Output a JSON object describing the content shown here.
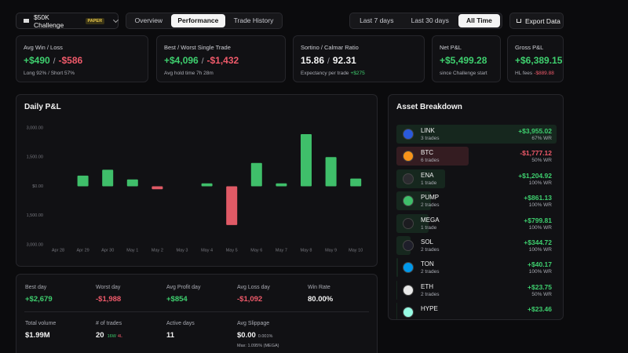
{
  "header": {
    "account": "$50K Challenge",
    "badge": "PAPER",
    "tabs": [
      "Overview",
      "Performance",
      "Trade History"
    ],
    "active_tab": 1,
    "ranges": [
      "Last 7 days",
      "Last 30 days",
      "All Time"
    ],
    "active_range": 2,
    "export": "Export Data"
  },
  "cards": [
    {
      "label": "Avg Win / Loss",
      "pos": "+$490",
      "sep": "/",
      "neg": "-$586",
      "note": "Long 92% / Short 57%"
    },
    {
      "label": "Best / Worst Single Trade",
      "pos": "+$4,096",
      "sep": "/",
      "neg": "-$1,432",
      "note": "Avg hold time 7h 28m"
    },
    {
      "label": "Sortino / Calmar Ratio",
      "main": "15.86",
      "sep": "/",
      "main2": "92.31",
      "note": "Expectancy per trade",
      "note_pos": "+$275"
    },
    {
      "label": "Net P&L",
      "pos": "+$5,499.28",
      "note": "since Challenge start"
    },
    {
      "label": "Gross P&L",
      "pos": "+$6,389.15",
      "note": "HL fees",
      "note_neg": "-$889.88"
    }
  ],
  "chart_data": {
    "type": "bar",
    "title": "Daily P&L",
    "categories": [
      "Apr 28",
      "Apr 29",
      "Apr 30",
      "May 1",
      "May 2",
      "May 3",
      "May 4",
      "May 5",
      "May 6",
      "May 7",
      "May 8",
      "May 9",
      "May 10"
    ],
    "values": [
      0,
      550,
      850,
      350,
      -150,
      0,
      150,
      -1988,
      1200,
      150,
      2679,
      1500,
      400
    ],
    "colors": {
      "positive": "#3fbf6a",
      "negative": "#e05a66"
    },
    "ylim": [
      -3000,
      3000
    ],
    "yticks": [
      {
        "value": -3000,
        "label": "3,000.00"
      },
      {
        "value": -1500,
        "label": "1,500.00"
      },
      {
        "value": 0,
        "label": "$0.00"
      },
      {
        "value": 1500,
        "label": "1,500.00"
      },
      {
        "value": 3000,
        "label": "3,000.00"
      }
    ],
    "grid": false
  },
  "assets": {
    "title": "Asset Breakdown",
    "rows": [
      {
        "symbol": "LINK",
        "trades": "3 trades",
        "pnl": 3955.02,
        "pnl_label": "+$3,955.02",
        "win_rate": "67% WR"
      },
      {
        "symbol": "BTC",
        "trades": "6 trades",
        "pnl": -1777.12,
        "pnl_label": "-$1,777.12",
        "win_rate": "50% WR"
      },
      {
        "symbol": "ENA",
        "trades": "1 trade",
        "pnl": 1204.92,
        "pnl_label": "+$1,204.92",
        "win_rate": "100% WR"
      },
      {
        "symbol": "PUMP",
        "trades": "2 trades",
        "pnl": 861.13,
        "pnl_label": "+$861.13",
        "win_rate": "100% WR"
      },
      {
        "symbol": "MEGA",
        "trades": "1 trade",
        "pnl": 799.81,
        "pnl_label": "+$799.81",
        "win_rate": "100% WR"
      },
      {
        "symbol": "SOL",
        "trades": "2 trades",
        "pnl": 344.72,
        "pnl_label": "+$344.72",
        "win_rate": "100% WR"
      },
      {
        "symbol": "TON",
        "trades": "2 trades",
        "pnl": 40.17,
        "pnl_label": "+$40.17",
        "win_rate": "100% WR"
      },
      {
        "symbol": "ETH",
        "trades": "2 trades",
        "pnl": 23.75,
        "pnl_label": "+$23.75",
        "win_rate": "50% WR"
      },
      {
        "symbol": "HYPE",
        "pnl": 23.46,
        "pnl_label": "+$23.46"
      }
    ]
  },
  "summary": {
    "rows": [
      [
        {
          "label": "Best day",
          "value": "+$2,679",
          "tone": "pos"
        },
        {
          "label": "Worst day",
          "value": "-$1,988",
          "tone": "neg"
        },
        {
          "label": "Avg Profit day",
          "value": "+$854",
          "tone": "pos"
        },
        {
          "label": "Avg Loss day",
          "value": "-$1,092",
          "tone": "neg"
        },
        {
          "label": "Win Rate",
          "value": "80.00%",
          "tone": "plain"
        }
      ],
      [
        {
          "label": "Total volume",
          "value": "$1.99M",
          "tone": "plain"
        },
        {
          "label": "# of trades",
          "value": "20",
          "tone": "plain",
          "win": "16W",
          "loss": "4L"
        },
        {
          "label": "Active days",
          "value": "11",
          "tone": "plain"
        },
        {
          "label": "Avg Slippage",
          "value": "$0.00",
          "tone": "plain",
          "detail": "0.001%",
          "sub": "Max: 1.095% (MEGA)"
        }
      ]
    ]
  }
}
